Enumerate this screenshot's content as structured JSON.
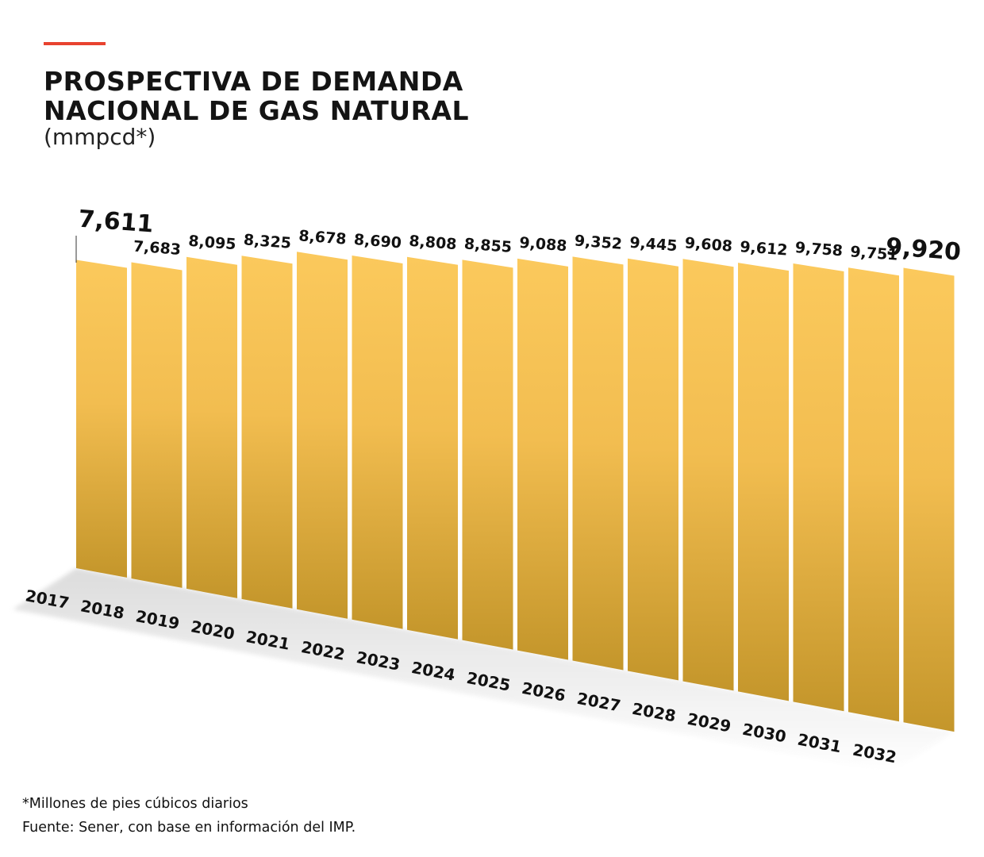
{
  "header": {
    "title_line1": "PROSPECTIVA DE DEMANDA",
    "title_line2": "NACIONAL DE GAS NATURAL",
    "unit": "(mmpcd*)"
  },
  "notes": {
    "footnote": "*Millones de pies cúbicos diarios",
    "source": "Fuente: Sener, con base en información del IMP."
  },
  "colors": {
    "accent": "#e8432f",
    "bar_top": "#fbc95c",
    "bar_bottom": "#c4962b"
  },
  "chart_data": {
    "type": "bar",
    "categories": [
      "2017",
      "2018",
      "2019",
      "2020",
      "2021",
      "2022",
      "2023",
      "2024",
      "2025",
      "2026",
      "2027",
      "2028",
      "2029",
      "2030",
      "2031",
      "2032"
    ],
    "values": [
      7611,
      7683,
      8095,
      8325,
      8678,
      8690,
      8808,
      8855,
      9088,
      9352,
      9445,
      9608,
      9612,
      9758,
      9751,
      9920
    ],
    "value_labels": [
      "7,611",
      "7,683",
      "8,095",
      "8,325",
      "8,678",
      "8,690",
      "8,808",
      "8,855",
      "9,088",
      "9,352",
      "9,445",
      "9,608",
      "9,612",
      "9,758",
      "9,751",
      "9,920"
    ],
    "title": "PROSPECTIVA DE DEMANDA NACIONAL DE GAS NATURAL",
    "ylabel": "(mmpcd*)",
    "grid": false,
    "legend": "none"
  }
}
